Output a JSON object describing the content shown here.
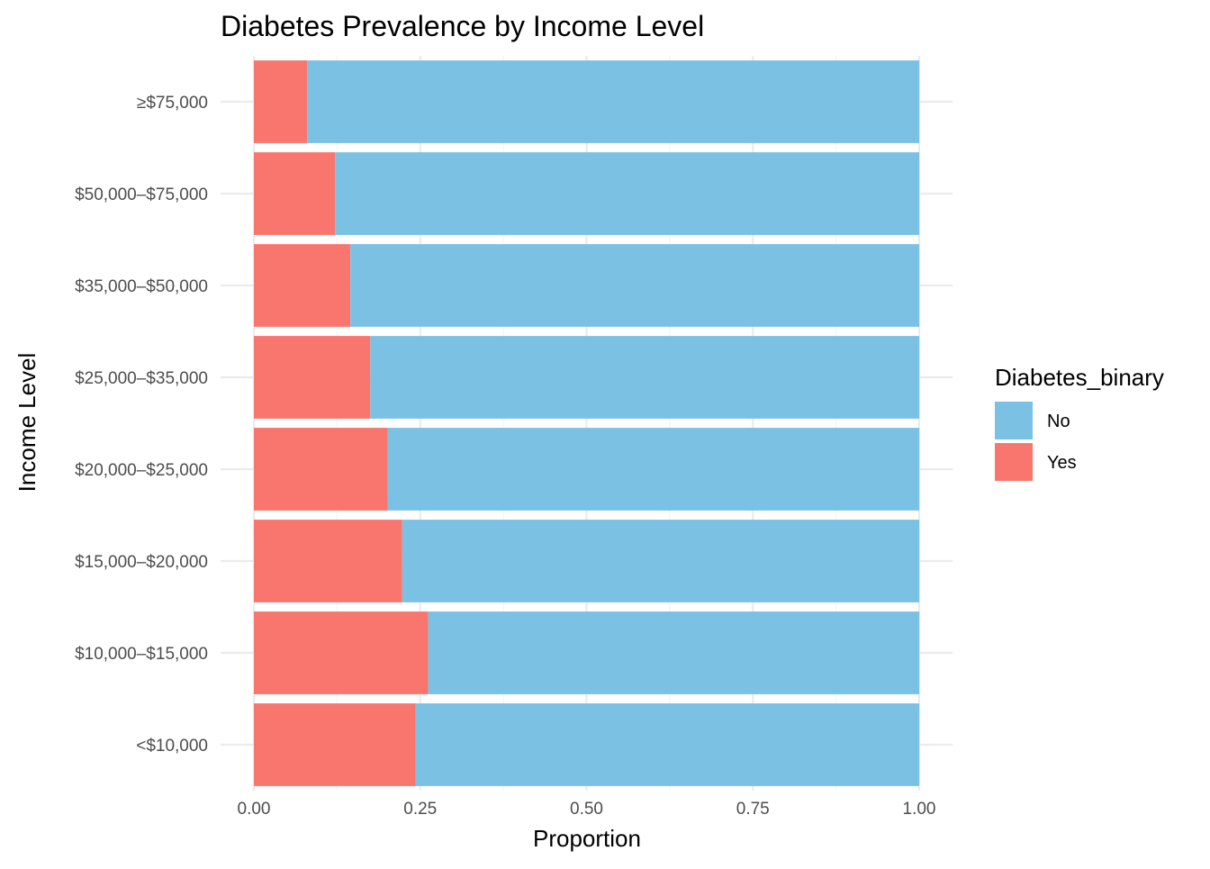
{
  "chart_data": {
    "type": "bar",
    "orientation": "horizontal",
    "stacked": true,
    "title": "Diabetes Prevalence by Income Level",
    "xlabel": "Proportion",
    "ylabel": "Income Level",
    "xlim": [
      0,
      1
    ],
    "xticks": [
      "0.00",
      "0.25",
      "0.50",
      "0.75",
      "1.00"
    ],
    "xtick_values": [
      0,
      0.25,
      0.5,
      0.75,
      1.0
    ],
    "categories": [
      "<$10,000",
      "$10,000–$15,000",
      "$15,000–$20,000",
      "$20,000–$25,000",
      "$25,000–$35,000",
      "$35,000–$50,000",
      "$50,000–$75,000",
      "≥$75,000"
    ],
    "series": [
      {
        "name": "Yes",
        "color": "#F8766D",
        "values": [
          0.243,
          0.262,
          0.223,
          0.201,
          0.175,
          0.145,
          0.122,
          0.08
        ]
      },
      {
        "name": "No",
        "color": "#7AC1E4",
        "values": [
          0.757,
          0.738,
          0.777,
          0.799,
          0.825,
          0.855,
          0.878,
          0.92
        ]
      }
    ],
    "legend": {
      "title": "Diabetes_binary",
      "position": "right",
      "items": [
        {
          "label": "No",
          "color": "#7AC1E4"
        },
        {
          "label": "Yes",
          "color": "#F8766D"
        }
      ]
    },
    "grid": true
  }
}
